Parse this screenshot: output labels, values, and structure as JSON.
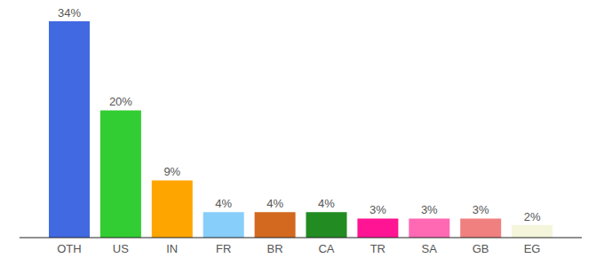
{
  "chart_data": {
    "type": "bar",
    "categories": [
      "OTH",
      "US",
      "IN",
      "FR",
      "BR",
      "CA",
      "TR",
      "SA",
      "GB",
      "EG"
    ],
    "values": [
      34,
      20,
      9,
      4,
      4,
      4,
      3,
      3,
      3,
      2
    ],
    "value_labels": [
      "34%",
      "20%",
      "9%",
      "4%",
      "4%",
      "4%",
      "3%",
      "3%",
      "3%",
      "2%"
    ],
    "colors": [
      "#4169e1",
      "#32cd32",
      "#ffa500",
      "#87cefa",
      "#d2691e",
      "#228b22",
      "#ff1493",
      "#ff69b4",
      "#f08080",
      "#f5f5dc"
    ],
    "data_labels": true,
    "tick_labels": "x"
  }
}
